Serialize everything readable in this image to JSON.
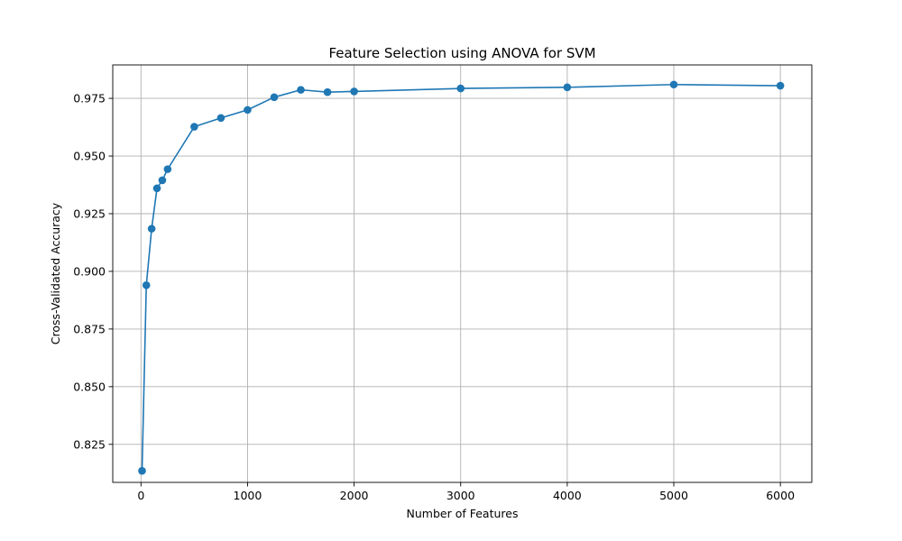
{
  "chart_data": {
    "type": "line",
    "title": "Feature Selection using ANOVA for SVM",
    "xlabel": "Number of Features",
    "ylabel": "Cross-Validated Accuracy",
    "xlim": [
      -265,
      6295
    ],
    "ylim": [
      0.8085,
      0.9895
    ],
    "xticks": [
      0,
      1000,
      2000,
      3000,
      4000,
      5000,
      6000
    ],
    "yticks": [
      0.825,
      0.85,
      0.875,
      0.9,
      0.925,
      0.95,
      0.975
    ],
    "xtick_labels": [
      "0",
      "1000",
      "2000",
      "3000",
      "4000",
      "5000",
      "6000"
    ],
    "ytick_labels": [
      "0.825",
      "0.850",
      "0.875",
      "0.900",
      "0.925",
      "0.950",
      "0.975"
    ],
    "grid": true,
    "series": [
      {
        "color": "#1f77b4",
        "marker": "circle",
        "x": [
          10,
          50,
          100,
          150,
          200,
          250,
          500,
          750,
          1000,
          1250,
          1500,
          1750,
          2000,
          3000,
          4000,
          5000,
          6000
        ],
        "y": [
          0.8135,
          0.894,
          0.9185,
          0.936,
          0.9395,
          0.9443,
          0.9627,
          0.9665,
          0.97,
          0.9755,
          0.9787,
          0.9777,
          0.978,
          0.9793,
          0.9798,
          0.981,
          0.9805
        ]
      }
    ]
  }
}
